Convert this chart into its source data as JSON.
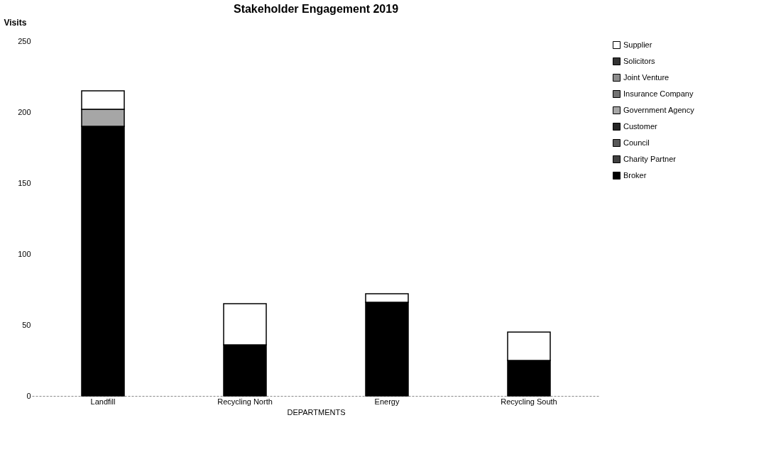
{
  "chart_data": {
    "type": "bar",
    "stacked": true,
    "title": "Stakeholder Engagement 2019",
    "xlabel": "DEPARTMENTS",
    "ylabel": "Visits",
    "categories": [
      "Landfill",
      "Recycling North",
      "Energy",
      "Recycling South"
    ],
    "series": [
      {
        "name": "Broker",
        "color": "#000000",
        "values": [
          190,
          36,
          66,
          25
        ]
      },
      {
        "name": "Charity Partner",
        "color": "#404040",
        "values": [
          null,
          null,
          null,
          null
        ]
      },
      {
        "name": "Council",
        "color": "#595959",
        "values": [
          null,
          null,
          null,
          null
        ]
      },
      {
        "name": "Customer",
        "color": "#262626",
        "values": [
          null,
          null,
          null,
          null
        ]
      },
      {
        "name": "Government Agency",
        "color": "#a6a6a6",
        "values": [
          12,
          null,
          null,
          null
        ]
      },
      {
        "name": "Insurance Company",
        "color": "#737373",
        "values": [
          null,
          null,
          null,
          null
        ]
      },
      {
        "name": "Joint Venture",
        "color": "#8c8c8c",
        "values": [
          null,
          null,
          null,
          null
        ]
      },
      {
        "name": "Solicitors",
        "color": "#333333",
        "values": [
          null,
          null,
          null,
          null
        ]
      },
      {
        "name": "Supplier",
        "color": "#ffffff",
        "values": [
          13,
          29,
          6,
          20
        ]
      }
    ],
    "ylim": [
      0,
      250
    ],
    "yticks": [
      0,
      50,
      100,
      150,
      200,
      250
    ],
    "grid": false,
    "legend": "right"
  }
}
